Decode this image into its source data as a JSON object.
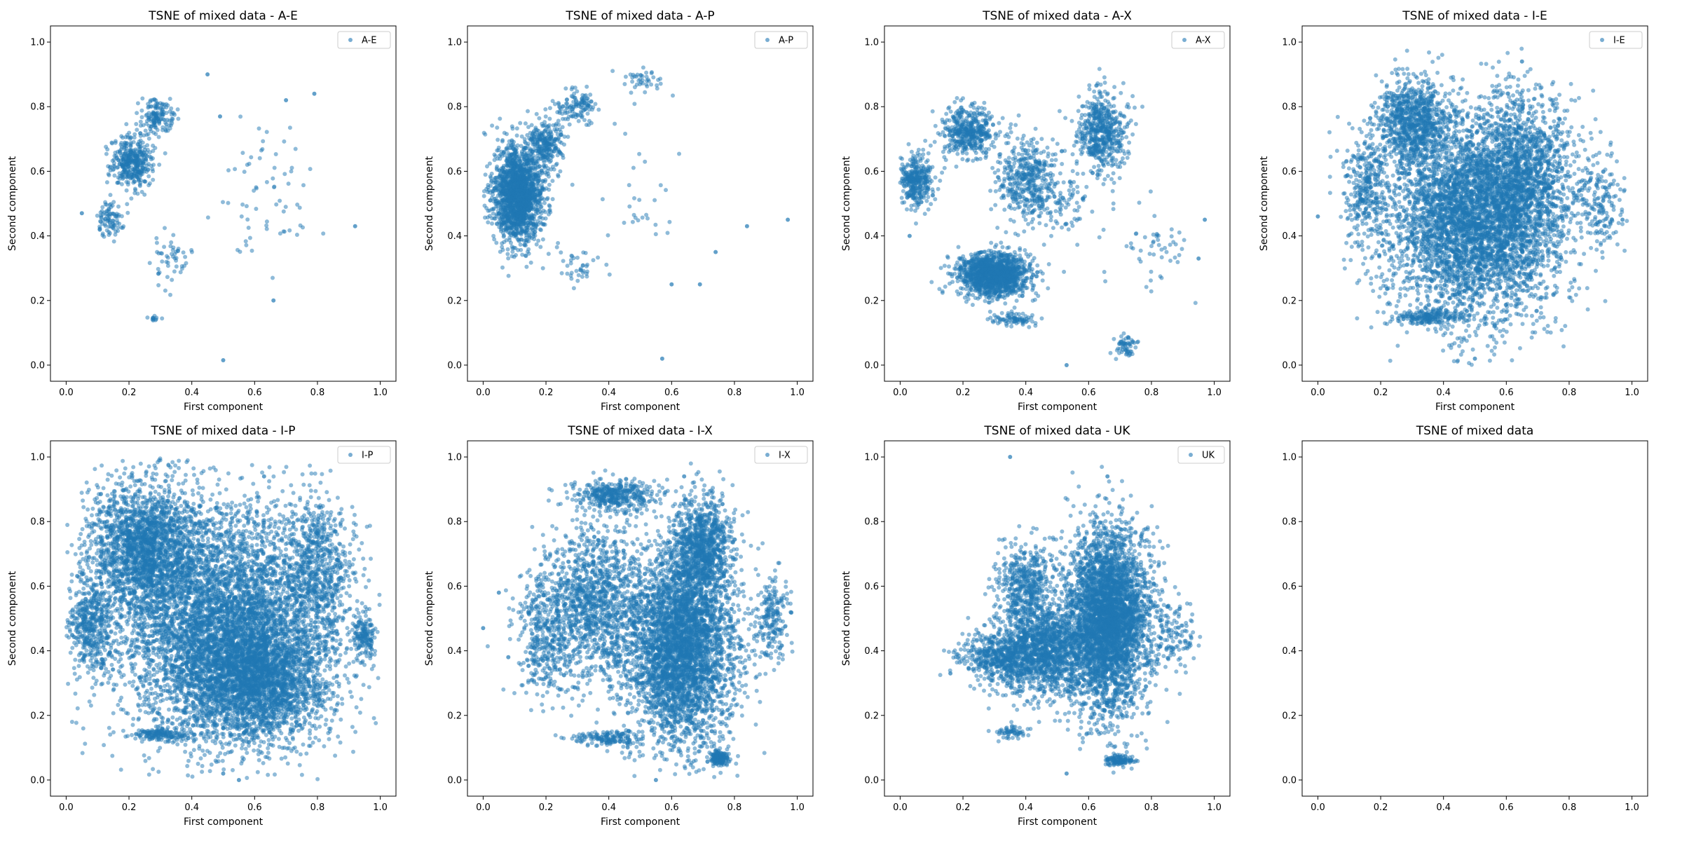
{
  "chart_data": [
    {
      "type": "scatter",
      "title": "TSNE of mixed data - A-E",
      "xlabel": "First component",
      "ylabel": "Second component",
      "xlim": [
        -0.05,
        1.05
      ],
      "ylim": [
        -0.05,
        1.05
      ],
      "xticks": [
        "0.0",
        "0.2",
        "0.4",
        "0.6",
        "0.8",
        "1.0"
      ],
      "yticks": [
        "0.0",
        "0.2",
        "0.4",
        "0.6",
        "0.8",
        "1.0"
      ],
      "grid": false,
      "legend_position": "top-right",
      "series": [
        {
          "name": "A-E",
          "color": "#1f77b4",
          "clusters": [
            {
              "cx": 0.21,
              "cy": 0.63,
              "rx": 0.06,
              "ry": 0.07,
              "n": 380
            },
            {
              "cx": 0.29,
              "cy": 0.77,
              "rx": 0.05,
              "ry": 0.05,
              "n": 150
            },
            {
              "cx": 0.14,
              "cy": 0.45,
              "rx": 0.04,
              "ry": 0.05,
              "n": 90
            },
            {
              "cx": 0.33,
              "cy": 0.33,
              "rx": 0.06,
              "ry": 0.08,
              "n": 50
            },
            {
              "cx": 0.63,
              "cy": 0.52,
              "rx": 0.14,
              "ry": 0.2,
              "n": 65
            },
            {
              "cx": 0.28,
              "cy": 0.145,
              "rx": 0.02,
              "ry": 0.006,
              "n": 12
            }
          ],
          "points": [
            [
              0.5,
              0.015
            ],
            [
              0.05,
              0.47
            ],
            [
              0.92,
              0.43
            ],
            [
              0.45,
              0.9
            ],
            [
              0.66,
              0.2
            ],
            [
              0.79,
              0.84
            ],
            [
              0.7,
              0.82
            ],
            [
              0.49,
              0.77
            ]
          ]
        }
      ]
    },
    {
      "type": "scatter",
      "title": "TSNE of mixed data - A-P",
      "xlabel": "First component",
      "ylabel": "Second component",
      "xlim": [
        -0.05,
        1.05
      ],
      "ylim": [
        -0.05,
        1.05
      ],
      "xticks": [
        "0.0",
        "0.2",
        "0.4",
        "0.6",
        "0.8",
        "1.0"
      ],
      "yticks": [
        "0.0",
        "0.2",
        "0.4",
        "0.6",
        "0.8",
        "1.0"
      ],
      "grid": false,
      "legend_position": "top-right",
      "series": [
        {
          "name": "A-P",
          "color": "#1f77b4",
          "clusters": [
            {
              "cx": 0.11,
              "cy": 0.53,
              "rx": 0.07,
              "ry": 0.13,
              "n": 1800
            },
            {
              "cx": 0.2,
              "cy": 0.68,
              "rx": 0.05,
              "ry": 0.07,
              "n": 250
            },
            {
              "cx": 0.3,
              "cy": 0.8,
              "rx": 0.06,
              "ry": 0.05,
              "n": 120
            },
            {
              "cx": 0.5,
              "cy": 0.88,
              "rx": 0.05,
              "ry": 0.04,
              "n": 40
            },
            {
              "cx": 0.3,
              "cy": 0.3,
              "rx": 0.08,
              "ry": 0.06,
              "n": 40
            },
            {
              "cx": 0.5,
              "cy": 0.55,
              "rx": 0.15,
              "ry": 0.2,
              "n": 30
            }
          ],
          "points": [
            [
              0.84,
              0.43
            ],
            [
              0.97,
              0.45
            ],
            [
              0.57,
              0.02
            ],
            [
              0.6,
              0.25
            ],
            [
              0.74,
              0.35
            ],
            [
              0.69,
              0.25
            ]
          ]
        }
      ]
    },
    {
      "type": "scatter",
      "title": "TSNE of mixed data - A-X",
      "xlabel": "First component",
      "ylabel": "Second component",
      "xlim": [
        -0.05,
        1.05
      ],
      "ylim": [
        -0.05,
        1.05
      ],
      "xticks": [
        "0.0",
        "0.2",
        "0.4",
        "0.6",
        "0.8",
        "1.0"
      ],
      "yticks": [
        "0.0",
        "0.2",
        "0.4",
        "0.6",
        "0.8",
        "1.0"
      ],
      "grid": false,
      "legend_position": "top-right",
      "series": [
        {
          "name": "A-X",
          "color": "#1f77b4",
          "clusters": [
            {
              "cx": 0.3,
              "cy": 0.28,
              "rx": 0.1,
              "ry": 0.06,
              "n": 1500
            },
            {
              "cx": 0.05,
              "cy": 0.57,
              "rx": 0.05,
              "ry": 0.07,
              "n": 350
            },
            {
              "cx": 0.22,
              "cy": 0.72,
              "rx": 0.08,
              "ry": 0.07,
              "n": 450
            },
            {
              "cx": 0.4,
              "cy": 0.58,
              "rx": 0.09,
              "ry": 0.12,
              "n": 400
            },
            {
              "cx": 0.64,
              "cy": 0.72,
              "rx": 0.07,
              "ry": 0.12,
              "n": 550
            },
            {
              "cx": 0.5,
              "cy": 0.5,
              "rx": 0.1,
              "ry": 0.1,
              "n": 120
            },
            {
              "cx": 0.72,
              "cy": 0.06,
              "rx": 0.03,
              "ry": 0.03,
              "n": 60
            },
            {
              "cx": 0.35,
              "cy": 0.14,
              "rx": 0.08,
              "ry": 0.02,
              "n": 80
            },
            {
              "cx": 0.8,
              "cy": 0.35,
              "rx": 0.12,
              "ry": 0.12,
              "n": 50
            }
          ],
          "points": [
            [
              0.53,
              0.0
            ],
            [
              0.95,
              0.33
            ],
            [
              0.97,
              0.45
            ],
            [
              0.03,
              0.4
            ]
          ]
        }
      ]
    },
    {
      "type": "scatter",
      "title": "TSNE of mixed data - I-E",
      "xlabel": "First component",
      "ylabel": "Second component",
      "xlim": [
        -0.05,
        1.05
      ],
      "ylim": [
        -0.05,
        1.05
      ],
      "xticks": [
        "0.0",
        "0.2",
        "0.4",
        "0.6",
        "0.8",
        "1.0"
      ],
      "yticks": [
        "0.0",
        "0.2",
        "0.4",
        "0.6",
        "0.8",
        "1.0"
      ],
      "grid": false,
      "legend_position": "top-right",
      "series": [
        {
          "name": "I-E",
          "color": "#1f77b4",
          "clusters": [
            {
              "cx": 0.5,
              "cy": 0.45,
              "rx": 0.26,
              "ry": 0.28,
              "n": 4500
            },
            {
              "cx": 0.65,
              "cy": 0.6,
              "rx": 0.14,
              "ry": 0.22,
              "n": 1200
            },
            {
              "cx": 0.3,
              "cy": 0.75,
              "rx": 0.1,
              "ry": 0.12,
              "n": 900
            },
            {
              "cx": 0.35,
              "cy": 0.15,
              "rx": 0.1,
              "ry": 0.02,
              "n": 200
            },
            {
              "cx": 0.15,
              "cy": 0.55,
              "rx": 0.06,
              "ry": 0.15,
              "n": 300
            },
            {
              "cx": 0.9,
              "cy": 0.5,
              "rx": 0.06,
              "ry": 0.12,
              "n": 150
            }
          ],
          "points": [
            [
              0.0,
              0.46
            ],
            [
              0.65,
              0.94
            ],
            [
              0.5,
              0.02
            ],
            [
              0.97,
              0.45
            ]
          ]
        }
      ]
    },
    {
      "type": "scatter",
      "title": "TSNE of mixed data - I-P",
      "xlabel": "First component",
      "ylabel": "Second component",
      "xlim": [
        -0.05,
        1.05
      ],
      "ylim": [
        -0.05,
        1.05
      ],
      "xticks": [
        "0.0",
        "0.2",
        "0.4",
        "0.6",
        "0.8",
        "1.0"
      ],
      "yticks": [
        "0.0",
        "0.2",
        "0.4",
        "0.6",
        "0.8",
        "1.0"
      ],
      "grid": false,
      "legend_position": "top-right",
      "series": [
        {
          "name": "I-P",
          "color": "#1f77b4",
          "clusters": [
            {
              "cx": 0.5,
              "cy": 0.48,
              "rx": 0.32,
              "ry": 0.32,
              "n": 5500
            },
            {
              "cx": 0.25,
              "cy": 0.72,
              "rx": 0.16,
              "ry": 0.18,
              "n": 2000
            },
            {
              "cx": 0.6,
              "cy": 0.3,
              "rx": 0.2,
              "ry": 0.16,
              "n": 2000
            },
            {
              "cx": 0.08,
              "cy": 0.47,
              "rx": 0.06,
              "ry": 0.12,
              "n": 400
            },
            {
              "cx": 0.8,
              "cy": 0.65,
              "rx": 0.1,
              "ry": 0.2,
              "n": 600
            },
            {
              "cx": 0.3,
              "cy": 0.14,
              "rx": 0.08,
              "ry": 0.02,
              "n": 150
            },
            {
              "cx": 0.95,
              "cy": 0.45,
              "rx": 0.03,
              "ry": 0.06,
              "n": 150
            }
          ],
          "points": [
            [
              0.55,
              0.0
            ],
            [
              0.63,
              0.94
            ],
            [
              0.5,
              0.02
            ]
          ]
        }
      ]
    },
    {
      "type": "scatter",
      "title": "TSNE of mixed data - I-X",
      "xlabel": "First component",
      "ylabel": "Second component",
      "xlim": [
        -0.05,
        1.05
      ],
      "ylim": [
        -0.05,
        1.05
      ],
      "xticks": [
        "0.0",
        "0.2",
        "0.4",
        "0.6",
        "0.8",
        "1.0"
      ],
      "yticks": [
        "0.0",
        "0.2",
        "0.4",
        "0.6",
        "0.8",
        "1.0"
      ],
      "grid": false,
      "legend_position": "top-right",
      "series": [
        {
          "name": "I-X",
          "color": "#1f77b4",
          "clusters": [
            {
              "cx": 0.63,
              "cy": 0.42,
              "rx": 0.16,
              "ry": 0.28,
              "n": 4000
            },
            {
              "cx": 0.7,
              "cy": 0.72,
              "rx": 0.08,
              "ry": 0.14,
              "n": 900
            },
            {
              "cx": 0.35,
              "cy": 0.55,
              "rx": 0.14,
              "ry": 0.22,
              "n": 1200
            },
            {
              "cx": 0.42,
              "cy": 0.88,
              "rx": 0.12,
              "ry": 0.04,
              "n": 400
            },
            {
              "cx": 0.2,
              "cy": 0.45,
              "rx": 0.08,
              "ry": 0.18,
              "n": 400
            },
            {
              "cx": 0.4,
              "cy": 0.13,
              "rx": 0.1,
              "ry": 0.02,
              "n": 150
            },
            {
              "cx": 0.75,
              "cy": 0.07,
              "rx": 0.03,
              "ry": 0.02,
              "n": 150
            },
            {
              "cx": 0.92,
              "cy": 0.5,
              "rx": 0.05,
              "ry": 0.12,
              "n": 200
            }
          ],
          "points": [
            [
              0.0,
              0.47
            ],
            [
              0.64,
              0.94
            ],
            [
              0.55,
              0.0
            ],
            [
              0.05,
              0.58
            ],
            [
              0.08,
              0.38
            ]
          ]
        }
      ]
    },
    {
      "type": "scatter",
      "title": "TSNE of mixed data - UK",
      "xlabel": "First component",
      "ylabel": "Second component",
      "xlim": [
        -0.05,
        1.05
      ],
      "ylim": [
        -0.05,
        1.05
      ],
      "xticks": [
        "0.0",
        "0.2",
        "0.4",
        "0.6",
        "0.8",
        "1.0"
      ],
      "yticks": [
        "0.0",
        "0.2",
        "0.4",
        "0.6",
        "0.8",
        "1.0"
      ],
      "grid": false,
      "legend_position": "top-right",
      "series": [
        {
          "name": "UK",
          "color": "#1f77b4",
          "clusters": [
            {
              "cx": 0.66,
              "cy": 0.5,
              "rx": 0.12,
              "ry": 0.25,
              "n": 4000
            },
            {
              "cx": 0.45,
              "cy": 0.4,
              "rx": 0.14,
              "ry": 0.12,
              "n": 1500
            },
            {
              "cx": 0.4,
              "cy": 0.6,
              "rx": 0.08,
              "ry": 0.12,
              "n": 500
            },
            {
              "cx": 0.3,
              "cy": 0.38,
              "rx": 0.1,
              "ry": 0.06,
              "n": 400
            },
            {
              "cx": 0.7,
              "cy": 0.06,
              "rx": 0.04,
              "ry": 0.02,
              "n": 120
            },
            {
              "cx": 0.35,
              "cy": 0.15,
              "rx": 0.05,
              "ry": 0.02,
              "n": 60
            },
            {
              "cx": 0.88,
              "cy": 0.45,
              "rx": 0.06,
              "ry": 0.1,
              "n": 120
            }
          ],
          "points": [
            [
              0.35,
              1.0
            ],
            [
              0.66,
              0.94
            ],
            [
              0.16,
              0.33
            ],
            [
              0.53,
              0.02
            ]
          ]
        }
      ]
    },
    {
      "type": "scatter",
      "title": "TSNE of mixed data",
      "xlabel": "",
      "ylabel": "",
      "xlim": [
        -0.05,
        1.05
      ],
      "ylim": [
        -0.05,
        1.05
      ],
      "xticks": [
        "0.0",
        "0.2",
        "0.4",
        "0.6",
        "0.8",
        "1.0"
      ],
      "yticks": [
        "0.0",
        "0.2",
        "0.4",
        "0.6",
        "0.8",
        "1.0"
      ],
      "grid": false,
      "legend_position": "",
      "series": []
    }
  ]
}
